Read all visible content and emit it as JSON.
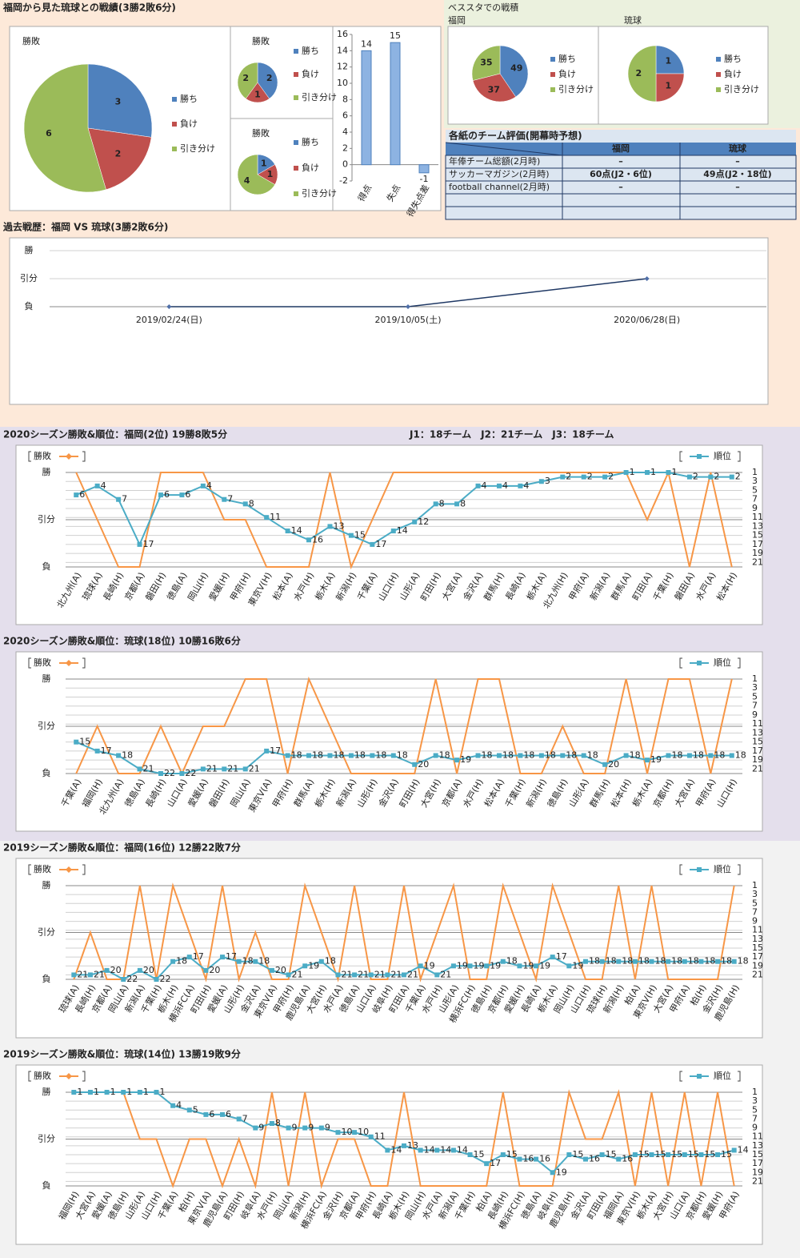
{
  "h2h_title": "福岡から見た琉球との戦績(3勝2敗6分)",
  "stadium_title": "ベススタでの戦積",
  "table": {
    "title": "各紙のチーム評価(開幕時予想)",
    "columns": [
      "福岡",
      "琉球"
    ],
    "rows": [
      {
        "label": "年俸チーム総額(2月時)",
        "cells": [
          "–",
          "–"
        ]
      },
      {
        "label": "サッカーマガジン(2月時)",
        "cells": [
          "60点(J2・6位)",
          "49点(J2・18位)"
        ]
      },
      {
        "label": "football channel(2月時)",
        "cells": [
          "–",
          "–"
        ]
      }
    ]
  },
  "chart_data": [
    {
      "type": "pie",
      "title": "勝敗",
      "categories": [
        "勝ち",
        "負け",
        "引き分け"
      ],
      "values": [
        3,
        2,
        6
      ],
      "colors": [
        "#4f81bd",
        "#c0504d",
        "#9bbb59"
      ]
    },
    {
      "type": "pie",
      "title": "勝敗",
      "categories": [
        "勝ち",
        "負け",
        "引き分け"
      ],
      "values": [
        2,
        1,
        2
      ],
      "colors": [
        "#4f81bd",
        "#c0504d",
        "#9bbb59"
      ]
    },
    {
      "type": "pie",
      "title": "勝敗",
      "categories": [
        "勝ち",
        "負け",
        "引き分け"
      ],
      "values": [
        1,
        1,
        4
      ],
      "colors": [
        "#4f81bd",
        "#c0504d",
        "#9bbb59"
      ]
    },
    {
      "type": "bar",
      "categories": [
        "得点",
        "失点",
        "得失点差"
      ],
      "values": [
        14,
        15,
        -1
      ],
      "color": "#8db3e2",
      "ylim": [
        -2,
        16
      ],
      "yticks": [
        -2,
        0,
        2,
        4,
        6,
        8,
        10,
        12,
        14,
        16
      ],
      "grid": false
    },
    {
      "type": "pie",
      "title": "福岡",
      "categories": [
        "勝ち",
        "負け",
        "引き分け"
      ],
      "values": [
        49,
        37,
        35
      ],
      "colors": [
        "#4f81bd",
        "#c0504d",
        "#9bbb59"
      ]
    },
    {
      "type": "pie",
      "title": "琉球",
      "categories": [
        "勝ち",
        "負け",
        "引き分け"
      ],
      "values": [
        1,
        1,
        2
      ],
      "colors": [
        "#4f81bd",
        "#c0504d",
        "#9bbb59"
      ]
    },
    {
      "type": "line",
      "title": "過去戦歴：福岡 VS 琉球(3勝2敗6分)",
      "categories": [
        "2019/02/24(日)",
        "2019/10/05(土)",
        "2020/06/28(日)"
      ],
      "values": [
        0,
        0,
        1
      ],
      "color": "#1f3864",
      "ylim": [
        0,
        2
      ],
      "yticks": [
        {
          "value": 0,
          "label": "負"
        },
        {
          "value": 1,
          "label": "引分"
        },
        {
          "value": 2,
          "label": "勝"
        }
      ],
      "grid": true
    },
    {
      "type": "line",
      "title": "2020シーズン勝敗&順位：福岡(2位) 19勝8敗5分",
      "subtitle": "J1：18チーム　J2：21チーム　J3：18チーム",
      "categories": [
        "北九州(A)",
        "琉球(A)",
        "長崎(H)",
        "京都(A)",
        "磐田(H)",
        "徳島(A)",
        "岡山(H)",
        "愛媛(H)",
        "甲府(H)",
        "東京V(H)",
        "松本(A)",
        "水戸(H)",
        "栃木(A)",
        "新潟(H)",
        "千葉(A)",
        "山口(H)",
        "山形(A)",
        "町田(H)",
        "大宮(A)",
        "金沢(A)",
        "群馬(H)",
        "長崎(A)",
        "栃木(A)",
        "北九州(H)",
        "甲府(A)",
        "新潟(A)",
        "群馬(A)",
        "町田(A)",
        "千葉(H)",
        "磐田(A)",
        "水戸(A)",
        "松本(H)"
      ],
      "series": [
        {
          "name": "勝敗",
          "color": "#f79646",
          "values": [
            2,
            1,
            0,
            0,
            2,
            2,
            2,
            1,
            1,
            0,
            0,
            0,
            2,
            0,
            1,
            2,
            2,
            2,
            2,
            2,
            2,
            2,
            2,
            2,
            2,
            2,
            2,
            1,
            2,
            0,
            2,
            0
          ]
        },
        {
          "name": "順位",
          "color": "#4bacc6",
          "axis": "y2",
          "values": [
            6,
            4,
            7,
            17,
            6,
            6,
            4,
            7,
            8,
            11,
            14,
            16,
            13,
            15,
            17,
            14,
            12,
            8,
            8,
            4,
            4,
            4,
            3,
            2,
            2,
            2,
            1,
            1,
            1,
            2,
            2,
            2
          ]
        }
      ],
      "ylim": [
        0,
        2
      ],
      "yticks": [
        {
          "value": 0,
          "label": "負"
        },
        {
          "value": 1,
          "label": "引分"
        },
        {
          "value": 2,
          "label": "勝"
        }
      ],
      "y2lim": [
        1,
        22
      ],
      "y2_reversed": true,
      "y2ticks": [
        1,
        3,
        5,
        7,
        9,
        11,
        13,
        15,
        17,
        19,
        21
      ],
      "grid": true
    },
    {
      "type": "line",
      "title": "2020シーズン勝敗&順位：琉球(18位) 10勝16敗6分",
      "categories": [
        "千葉(A)",
        "福岡(H)",
        "北九州(A)",
        "徳島(A)",
        "長崎(H)",
        "山口(A)",
        "愛媛(A)",
        "磐田(H)",
        "岡山(A)",
        "東京V(A)",
        "甲府(H)",
        "群馬(A)",
        "栃木(H)",
        "新潟(A)",
        "山形(H)",
        "金沢(A)",
        "町田(H)",
        "大宮(H)",
        "京都(A)",
        "水戸(H)",
        "松本(A)",
        "千葉(H)",
        "新潟(H)",
        "徳島(H)",
        "山形(A)",
        "群馬(H)",
        "松本(H)",
        "栃木(A)",
        "京都(H)",
        "大宮(A)",
        "甲府(A)",
        "山口(H)"
      ],
      "series": [
        {
          "name": "勝敗",
          "color": "#f79646",
          "values": [
            0,
            1,
            0,
            0,
            1,
            0,
            1,
            1,
            2,
            2,
            0,
            2,
            1,
            0,
            0,
            0,
            0,
            2,
            0,
            2,
            2,
            0,
            0,
            1,
            0,
            0,
            2,
            0,
            2,
            2,
            0,
            2
          ]
        },
        {
          "name": "順位",
          "color": "#4bacc6",
          "axis": "y2",
          "values": [
            15,
            17,
            18,
            21,
            22,
            22,
            21,
            21,
            21,
            17,
            18,
            18,
            18,
            18,
            18,
            18,
            20,
            18,
            19,
            18,
            18,
            18,
            18,
            18,
            18,
            20,
            18,
            19,
            18,
            18,
            18,
            18
          ]
        }
      ],
      "ylim": [
        0,
        2
      ],
      "yticks": [
        {
          "value": 0,
          "label": "負"
        },
        {
          "value": 1,
          "label": "引分"
        },
        {
          "value": 2,
          "label": "勝"
        }
      ],
      "y2lim": [
        1,
        22
      ],
      "y2_reversed": true,
      "y2ticks": [
        1,
        3,
        5,
        7,
        9,
        11,
        13,
        15,
        17,
        19,
        21
      ],
      "grid": true
    },
    {
      "type": "line",
      "title": "2019シーズン勝敗&順位：福岡(16位) 12勝22敗7分",
      "categories": [
        "琉球(A)",
        "長崎(H)",
        "京都(A)",
        "岡山(A)",
        "新潟(A)",
        "千葉(H)",
        "栃木(H)",
        "横浜FC(A)",
        "町田(H)",
        "愛媛(A)",
        "山形(H)",
        "金沢(A)",
        "東京V(A)",
        "甲府(H)",
        "鹿児島(A)",
        "大宮(H)",
        "水戸(A)",
        "徳島(A)",
        "山口(A)",
        "岐阜(H)",
        "町田(A)",
        "千葉(A)",
        "水戸(H)",
        "山形(A)",
        "横浜FC(H)",
        "徳島(H)",
        "京都(H)",
        "愛媛(H)",
        "長崎(A)",
        "栃木(A)",
        "岡山(H)",
        "山口(H)",
        "琉球(H)",
        "新潟(H)",
        "柏(A)",
        "東京V(H)",
        "大宮(A)",
        "甲府(A)",
        "柏(H)",
        "金沢(H)",
        "鹿児島(H)"
      ],
      "series": [
        {
          "name": "勝敗",
          "color": "#f79646",
          "values": [
            0,
            1,
            0,
            0,
            2,
            0,
            2,
            1,
            0,
            2,
            0,
            1,
            0,
            0,
            2,
            1,
            0,
            2,
            0,
            0,
            2,
            0,
            1,
            2,
            0,
            0,
            2,
            1,
            0,
            2,
            1,
            0,
            0,
            2,
            0,
            2,
            0,
            0,
            0,
            0,
            2
          ]
        },
        {
          "name": "順位",
          "color": "#4bacc6",
          "axis": "y2",
          "values": [
            21,
            21,
            20,
            22,
            20,
            22,
            18,
            17,
            20,
            17,
            18,
            18,
            20,
            21,
            19,
            18,
            21,
            21,
            21,
            21,
            21,
            19,
            21,
            19,
            19,
            19,
            18,
            19,
            19,
            17,
            19,
            18,
            18,
            18,
            18,
            18,
            18,
            18,
            18,
            18,
            18
          ]
        }
      ],
      "ylim": [
        0,
        2
      ],
      "yticks": [
        {
          "value": 0,
          "label": "負"
        },
        {
          "value": 1,
          "label": "引分"
        },
        {
          "value": 2,
          "label": "勝"
        }
      ],
      "y2lim": [
        1,
        22
      ],
      "y2_reversed": true,
      "y2ticks": [
        1,
        3,
        5,
        7,
        9,
        11,
        13,
        15,
        17,
        19,
        21
      ],
      "grid": true
    },
    {
      "type": "line",
      "title": "2019シーズン勝敗&順位：琉球(14位) 13勝19敗9分",
      "categories": [
        "福岡(H)",
        "大宮(A)",
        "愛媛(A)",
        "徳島(H)",
        "山形(A)",
        "山口(H)",
        "千葉(A)",
        "柏(H)",
        "東京V(A)",
        "鹿児島(A)",
        "町田(H)",
        "岐阜(A)",
        "水戸(H)",
        "岡山(A)",
        "新潟(H)",
        "横浜FC(A)",
        "金沢(H)",
        "京都(A)",
        "甲府(H)",
        "長崎(A)",
        "栃木(H)",
        "岡山(H)",
        "水戸(A)",
        "新潟(A)",
        "千葉(H)",
        "柏(A)",
        "長崎(H)",
        "横浜FC(H)",
        "徳島(A)",
        "岐阜(H)",
        "鹿児島(H)",
        "金沢(A)",
        "町田(A)",
        "福岡(A)",
        "東京V(H)",
        "栃木(A)",
        "大宮(H)",
        "山口(A)",
        "京都(H)",
        "愛媛(H)",
        "甲府(A)"
      ],
      "series": [
        {
          "name": "勝敗",
          "color": "#f79646",
          "values": [
            2,
            2,
            2,
            2,
            1,
            1,
            0,
            1,
            1,
            0,
            1,
            0,
            2,
            0,
            2,
            0,
            1,
            1,
            0,
            0,
            2,
            0,
            0,
            0,
            0,
            0,
            2,
            0,
            0,
            0,
            2,
            1,
            1,
            2,
            0,
            2,
            0,
            2,
            0,
            2,
            0
          ]
        },
        {
          "name": "順位",
          "color": "#4bacc6",
          "axis": "y2",
          "values": [
            1,
            1,
            1,
            1,
            1,
            1,
            4,
            5,
            6,
            6,
            7,
            9,
            8,
            9,
            9,
            9,
            10,
            10,
            11,
            14,
            13,
            14,
            14,
            14,
            15,
            17,
            15,
            16,
            16,
            19,
            15,
            16,
            15,
            16,
            15,
            15,
            15,
            15,
            15,
            15,
            14
          ]
        }
      ],
      "ylim": [
        0,
        2
      ],
      "yticks": [
        {
          "value": 0,
          "label": "負"
        },
        {
          "value": 1,
          "label": "引分"
        },
        {
          "value": 2,
          "label": "勝"
        }
      ],
      "y2lim": [
        1,
        22
      ],
      "y2_reversed": true,
      "y2ticks": [
        1,
        3,
        5,
        7,
        9,
        11,
        13,
        15,
        17,
        19,
        21
      ],
      "grid": true
    }
  ]
}
